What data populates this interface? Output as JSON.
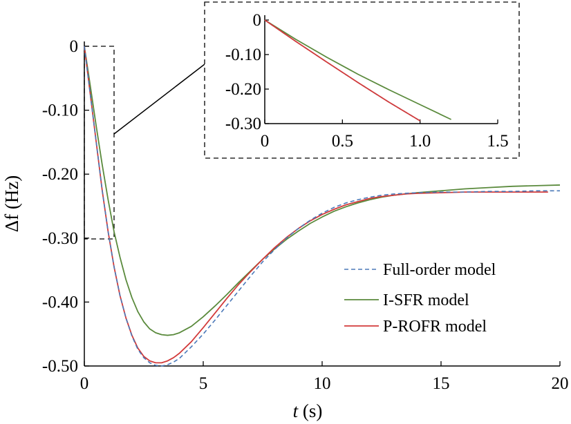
{
  "chart_data": {
    "type": "line",
    "xlabel": {
      "var": "t",
      "unit": " (s)"
    },
    "ylabel": {
      "var": "Δf",
      "unit": " (Hz)"
    },
    "xlim": [
      0,
      20
    ],
    "ylim": [
      -0.5,
      0
    ],
    "xticks": [
      0,
      5,
      10,
      15,
      20
    ],
    "xtick_labels": [
      "0",
      "5",
      "10",
      "15",
      "20"
    ],
    "yticks": [
      0,
      -0.1,
      -0.2,
      -0.3,
      -0.4,
      -0.5
    ],
    "ytick_labels": [
      "0",
      "-0.10",
      "-0.20",
      "-0.30",
      "-0.40",
      "-0.50"
    ],
    "grid": false,
    "legend_position": "lower-right",
    "series": [
      {
        "name": "Full-order model",
        "color": "#4a78b8",
        "style": "dashed",
        "x": [
          0,
          0.25,
          0.5,
          0.75,
          1,
          1.25,
          1.5,
          1.75,
          2,
          2.25,
          2.5,
          2.75,
          3,
          3.25,
          3.5,
          3.75,
          4,
          4.5,
          5,
          5.5,
          6,
          6.5,
          7,
          7.5,
          8,
          8.5,
          9,
          9.5,
          10,
          10.5,
          11,
          11.5,
          12,
          12.5,
          13,
          13.5,
          14,
          15,
          16,
          17,
          18,
          19,
          20
        ],
        "y": [
          0,
          -0.075,
          -0.15,
          -0.225,
          -0.29,
          -0.345,
          -0.39,
          -0.425,
          -0.453,
          -0.474,
          -0.487,
          -0.495,
          -0.499,
          -0.5,
          -0.498,
          -0.494,
          -0.488,
          -0.47,
          -0.45,
          -0.428,
          -0.405,
          -0.382,
          -0.359,
          -0.337,
          -0.318,
          -0.3,
          -0.285,
          -0.272,
          -0.261,
          -0.252,
          -0.245,
          -0.24,
          -0.236,
          -0.233,
          -0.231,
          -0.23,
          -0.229,
          -0.228,
          -0.228,
          -0.227,
          -0.227,
          -0.226,
          -0.226
        ]
      },
      {
        "name": "I-SFR model",
        "color": "#5a8a3c",
        "style": "solid",
        "x": [
          0,
          0.25,
          0.5,
          0.75,
          1,
          1.25,
          1.5,
          1.75,
          2,
          2.25,
          2.5,
          2.75,
          3,
          3.25,
          3.5,
          3.75,
          4,
          4.5,
          5,
          5.5,
          6,
          6.5,
          7,
          7.5,
          8,
          8.5,
          9,
          9.5,
          10,
          10.5,
          11,
          11.5,
          12,
          12.5,
          13,
          13.5,
          14,
          15,
          16,
          17,
          18,
          19,
          20
        ],
        "y": [
          0,
          -0.062,
          -0.125,
          -0.185,
          -0.24,
          -0.29,
          -0.33,
          -0.365,
          -0.393,
          -0.415,
          -0.431,
          -0.442,
          -0.448,
          -0.451,
          -0.452,
          -0.451,
          -0.448,
          -0.438,
          -0.423,
          -0.406,
          -0.388,
          -0.369,
          -0.351,
          -0.333,
          -0.317,
          -0.302,
          -0.289,
          -0.277,
          -0.267,
          -0.258,
          -0.251,
          -0.245,
          -0.24,
          -0.236,
          -0.233,
          -0.231,
          -0.229,
          -0.226,
          -0.223,
          -0.221,
          -0.219,
          -0.218,
          -0.217
        ]
      },
      {
        "name": "P-ROFR model",
        "color": "#d23a3a",
        "style": "solid",
        "x": [
          0,
          0.25,
          0.5,
          0.75,
          1,
          1.25,
          1.5,
          1.75,
          2,
          2.25,
          2.5,
          2.75,
          3,
          3.25,
          3.5,
          3.75,
          4,
          4.5,
          5,
          5.5,
          6,
          6.5,
          7,
          7.5,
          8,
          8.5,
          9,
          9.5,
          10,
          10.5,
          11,
          11.5,
          12,
          12.5,
          13,
          13.5,
          14,
          15,
          16,
          17,
          18,
          19,
          19.5
        ],
        "y": [
          0,
          -0.075,
          -0.15,
          -0.225,
          -0.29,
          -0.345,
          -0.39,
          -0.425,
          -0.452,
          -0.472,
          -0.485,
          -0.492,
          -0.495,
          -0.495,
          -0.492,
          -0.487,
          -0.48,
          -0.462,
          -0.44,
          -0.417,
          -0.394,
          -0.372,
          -0.352,
          -0.333,
          -0.315,
          -0.299,
          -0.285,
          -0.273,
          -0.263,
          -0.255,
          -0.248,
          -0.243,
          -0.238,
          -0.235,
          -0.233,
          -0.231,
          -0.23,
          -0.229,
          -0.228,
          -0.228,
          -0.228,
          -0.228,
          -0.228
        ]
      }
    ],
    "inset": {
      "xlim": [
        0,
        1.5
      ],
      "ylim": [
        -0.3,
        0
      ],
      "xticks": [
        0,
        0.5,
        1.0,
        1.5
      ],
      "xtick_labels": [
        "0",
        "0.5",
        "1.0",
        "1.5"
      ],
      "yticks": [
        0,
        -0.1,
        -0.2,
        -0.3
      ],
      "ytick_labels": [
        "0",
        "-0.10",
        "-0.20",
        "-0.30"
      ],
      "series": [
        {
          "name": "I-SFR model",
          "color": "#5a8a3c",
          "style": "solid",
          "x": [
            0,
            0.2,
            0.4,
            0.6,
            0.8,
            1.0,
            1.2
          ],
          "y": [
            0,
            -0.056,
            -0.108,
            -0.157,
            -0.202,
            -0.245,
            -0.288
          ]
        },
        {
          "name": "Full-order model",
          "color": "#4a78b8",
          "style": "dashed",
          "x": [
            0,
            0.2,
            0.4,
            0.6,
            0.8,
            1.0
          ],
          "y": [
            0,
            -0.062,
            -0.122,
            -0.181,
            -0.238,
            -0.292
          ]
        },
        {
          "name": "P-ROFR model",
          "color": "#d23a3a",
          "style": "solid",
          "x": [
            0,
            0.2,
            0.4,
            0.6,
            0.8,
            1.0
          ],
          "y": [
            0,
            -0.062,
            -0.122,
            -0.181,
            -0.238,
            -0.292
          ]
        }
      ]
    }
  }
}
